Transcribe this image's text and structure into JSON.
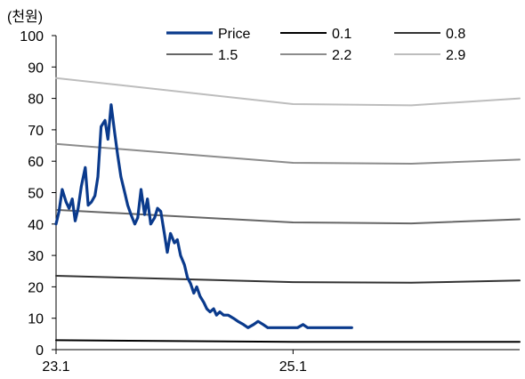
{
  "chart_data": {
    "type": "line",
    "unit_label": "(천원)",
    "ylim": [
      0,
      100
    ],
    "y_ticks": [
      "0",
      "10",
      "20",
      "30",
      "40",
      "50",
      "60",
      "70",
      "80",
      "90",
      "100"
    ],
    "x_ticks": [
      "23.1",
      "25.1"
    ],
    "xlim": [
      "2023-01",
      "2026-12"
    ],
    "grid": false,
    "legend_position": "top-right",
    "series": [
      {
        "name": "Price",
        "color": "#0a3a8c",
        "x": [
          "2023-01",
          "2023-01-10",
          "2023-01-20",
          "2023-02",
          "2023-02-10",
          "2023-02-20",
          "2023-03",
          "2023-03-10",
          "2023-03-20",
          "2023-04",
          "2023-04-10",
          "2023-04-20",
          "2023-05",
          "2023-05-10",
          "2023-05-20",
          "2023-06",
          "2023-06-10",
          "2023-06-20",
          "2023-07",
          "2023-07-10",
          "2023-07-20",
          "2023-08",
          "2023-08-10",
          "2023-08-20",
          "2023-09",
          "2023-09-10",
          "2023-09-20",
          "2023-10",
          "2023-10-10",
          "2023-10-20",
          "2023-11",
          "2023-11-10",
          "2023-11-20",
          "2023-12",
          "2023-12-10",
          "2023-12-20",
          "2024-01",
          "2024-01-10",
          "2024-01-20",
          "2024-02",
          "2024-02-10",
          "2024-02-20",
          "2024-03",
          "2024-03-10",
          "2024-03-20",
          "2024-04",
          "2024-04-10",
          "2024-04-20",
          "2024-05",
          "2024-05-10",
          "2024-05-20",
          "2024-06",
          "2024-06-15",
          "2024-07",
          "2024-07-15",
          "2024-08",
          "2024-08-15",
          "2024-09",
          "2024-09-15",
          "2024-10",
          "2024-10-15",
          "2024-11",
          "2024-11-15",
          "2024-12",
          "2024-12-15",
          "2025-01",
          "2025-01-15",
          "2025-02",
          "2025-02-15",
          "2025-03",
          "2025-03-15",
          "2025-04",
          "2025-04-15",
          "2025-05",
          "2025-05-15",
          "2025-06",
          "2025-06-15",
          "2025-07"
        ],
        "values": [
          40,
          44,
          51,
          47,
          45,
          48,
          41,
          45,
          52,
          58,
          46,
          47,
          49,
          55,
          71,
          73,
          67,
          78,
          69,
          62,
          55,
          50,
          46,
          43,
          40,
          42,
          51,
          43,
          48,
          40,
          42,
          45,
          44,
          37,
          31,
          37,
          34,
          35,
          30,
          27,
          23,
          21,
          18,
          20,
          17,
          15,
          13,
          12,
          13,
          11,
          12,
          11,
          11,
          10,
          9,
          8,
          7,
          8,
          9,
          8,
          7,
          7,
          7,
          7,
          7,
          7,
          7,
          8,
          7,
          7,
          7,
          7,
          7,
          7,
          7,
          7,
          7,
          7
        ]
      },
      {
        "name": "0.1",
        "color": "#000000",
        "x": [
          "2023-01",
          "2025-01",
          "2026-12"
        ],
        "values": [
          3,
          2.5,
          2.5
        ]
      },
      {
        "name": "0.8",
        "color": "#333333",
        "x": [
          "2023-01",
          "2025-01",
          "2026-01",
          "2026-12"
        ],
        "values": [
          23.5,
          21.5,
          21.3,
          22
        ]
      },
      {
        "name": "1.5",
        "color": "#666666",
        "x": [
          "2023-01",
          "2025-01",
          "2026-01",
          "2026-12"
        ],
        "values": [
          44.5,
          40.5,
          40.2,
          41.5
        ]
      },
      {
        "name": "2.2",
        "color": "#8c8c8c",
        "x": [
          "2023-01",
          "2025-01",
          "2026-01",
          "2026-12"
        ],
        "values": [
          65.5,
          59.5,
          59.2,
          60.5
        ]
      },
      {
        "name": "2.9",
        "color": "#bdbdbd",
        "x": [
          "2023-01",
          "2025-01",
          "2026-01",
          "2026-12"
        ],
        "values": [
          86.5,
          78.2,
          77.8,
          80
        ]
      }
    ]
  }
}
